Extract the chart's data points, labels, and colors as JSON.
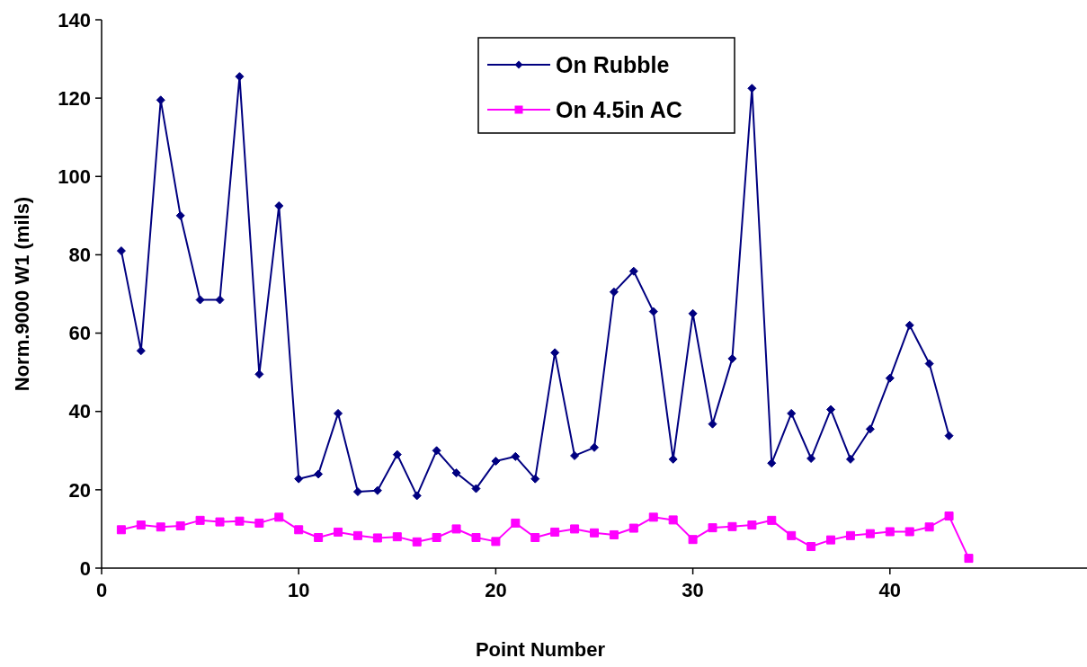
{
  "chart_data": {
    "type": "line",
    "xlabel": "Point Number",
    "ylabel": "Norm.9000 W1 (mils)",
    "xlim": [
      0,
      50
    ],
    "xticks": [
      0,
      10,
      20,
      30,
      40
    ],
    "ylim": [
      0,
      140
    ],
    "yticks": [
      0,
      20,
      40,
      60,
      80,
      100,
      120,
      140
    ],
    "grid": false,
    "legend": "top",
    "line_style": "solid",
    "series": [
      {
        "name": "On Rubble",
        "color": "#000080",
        "marker": "diamond",
        "x": [
          1,
          2,
          3,
          4,
          5,
          6,
          7,
          8,
          9,
          10,
          11,
          12,
          13,
          14,
          15,
          16,
          17,
          18,
          19,
          20,
          21,
          22,
          23,
          24,
          25,
          26,
          27,
          28,
          29,
          30,
          31,
          32,
          33,
          34,
          35,
          36,
          37,
          38,
          39,
          40,
          41,
          42,
          43
        ],
        "values": [
          81,
          55.5,
          119.5,
          90,
          68.5,
          68.5,
          125.5,
          49.5,
          92.5,
          22.8,
          24,
          39.5,
          19.5,
          19.8,
          29,
          18.5,
          30,
          24.3,
          20.3,
          27.3,
          28.5,
          22.8,
          55,
          28.7,
          30.8,
          70.5,
          75.8,
          65.5,
          27.8,
          65,
          36.8,
          53.5,
          122.5,
          26.8,
          39.5,
          28,
          40.5,
          27.8,
          35.5,
          48.5,
          62,
          52.2,
          33.8
        ]
      },
      {
        "name": "On 4.5in AC",
        "color": "#ff00ff",
        "marker": "square",
        "x": [
          1,
          2,
          3,
          4,
          5,
          6,
          7,
          8,
          9,
          10,
          11,
          12,
          13,
          14,
          15,
          16,
          17,
          18,
          19,
          20,
          21,
          22,
          23,
          24,
          25,
          26,
          27,
          28,
          29,
          30,
          31,
          32,
          33,
          34,
          35,
          36,
          37,
          38,
          39,
          40,
          41,
          42,
          43,
          44
        ],
        "values": [
          9.8,
          11,
          10.5,
          10.8,
          12.2,
          11.8,
          12,
          11.5,
          13,
          9.8,
          7.8,
          9.2,
          8.3,
          7.7,
          8,
          6.7,
          7.8,
          10,
          7.8,
          6.8,
          11.5,
          7.8,
          9.2,
          10,
          9,
          8.5,
          10.2,
          13,
          12.3,
          7.3,
          10.3,
          10.6,
          11,
          12.2,
          8.3,
          5.5,
          7.2,
          8.3,
          8.8,
          9.3,
          9.3,
          10.5,
          13.3,
          2.5
        ]
      }
    ]
  }
}
